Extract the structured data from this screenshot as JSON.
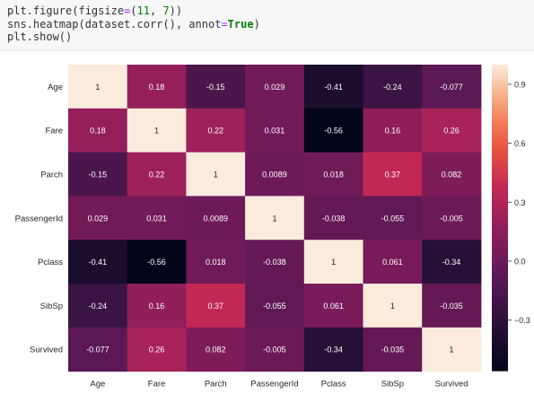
{
  "code_cell": {
    "lines": [
      "plt.figure(figsize=(11, 7))",
      "sns.heatmap(dataset.corr(), annot=True)",
      "plt.show()"
    ]
  },
  "chart_data": {
    "type": "heatmap",
    "title": "",
    "xlabel": "",
    "ylabel": "",
    "rows": [
      "Age",
      "Fare",
      "Parch",
      "PassengerId",
      "Pclass",
      "SibSp",
      "Survived"
    ],
    "columns": [
      "Age",
      "Fare",
      "Parch",
      "PassengerId",
      "Pclass",
      "SibSp",
      "Survived"
    ],
    "values": [
      [
        1,
        0.18,
        -0.15,
        0.029,
        -0.41,
        -0.24,
        -0.077
      ],
      [
        0.18,
        1,
        0.22,
        0.031,
        -0.56,
        0.16,
        0.26
      ],
      [
        -0.15,
        0.22,
        1,
        0.0089,
        0.018,
        0.37,
        0.082
      ],
      [
        0.029,
        0.031,
        0.0089,
        1,
        -0.038,
        -0.055,
        -0.005
      ],
      [
        -0.41,
        -0.56,
        0.018,
        -0.038,
        1,
        0.061,
        -0.34
      ],
      [
        -0.24,
        0.16,
        0.37,
        -0.055,
        0.061,
        1,
        -0.035
      ],
      [
        -0.077,
        0.26,
        0.082,
        -0.005,
        -0.34,
        -0.035,
        1
      ]
    ],
    "labels": [
      [
        "1",
        "0.18",
        "-0.15",
        "0.029",
        "-0.41",
        "-0.24",
        "-0.077"
      ],
      [
        "0.18",
        "1",
        "0.22",
        "0.031",
        "-0.56",
        "0.16",
        "0.26"
      ],
      [
        "-0.15",
        "0.22",
        "1",
        "0.0089",
        "0.018",
        "0.37",
        "0.082"
      ],
      [
        "0.029",
        "0.031",
        "0.0089",
        "1",
        "-0.038",
        "-0.055",
        "-0.005"
      ],
      [
        "-0.41",
        "-0.56",
        "0.018",
        "-0.038",
        "1",
        "0.061",
        "-0.34"
      ],
      [
        "-0.24",
        "0.16",
        "0.37",
        "-0.055",
        "0.061",
        "1",
        "-0.035"
      ],
      [
        "-0.077",
        "0.26",
        "0.082",
        "-0.005",
        "-0.34",
        "-0.035",
        "1"
      ]
    ],
    "colormap": "rocket",
    "vmin": -0.56,
    "vmax": 1,
    "colorbar": {
      "ticks": [
        0.9,
        0.6,
        0.3,
        0.0,
        -0.3
      ],
      "tick_labels": [
        "0.9",
        "0.6",
        "0.3",
        "0.0",
        "−0.3"
      ]
    }
  }
}
